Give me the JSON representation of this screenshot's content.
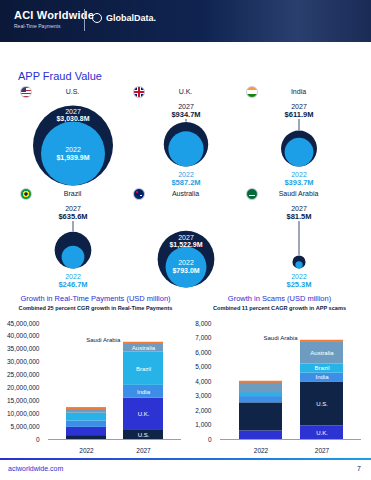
{
  "header": {
    "brand": "ACI Worldwide",
    "brand_tagline": "Real-Time Payments",
    "partner": "GlobalData."
  },
  "section_title": "APP Fraud Value",
  "fraud_values": [
    {
      "country": "U.S.",
      "categories": [
        "2027",
        "2022"
      ],
      "values": [
        3030.8,
        1939.9
      ],
      "value_labels": [
        "$3,030.8M",
        "$1,939.9M"
      ]
    },
    {
      "country": "U.K.",
      "categories": [
        "2027",
        "2022"
      ],
      "values": [
        934.7,
        587.2
      ],
      "value_labels": [
        "$934.7M",
        "$587.2M"
      ]
    },
    {
      "country": "India",
      "categories": [
        "2027",
        "2022"
      ],
      "values": [
        611.9,
        393.7
      ],
      "value_labels": [
        "$611.9M",
        "$393.7M"
      ]
    },
    {
      "country": "Brazil",
      "categories": [
        "2027",
        "2022"
      ],
      "values": [
        635.6,
        246.7
      ],
      "value_labels": [
        "$635.6M",
        "$246.7M"
      ]
    },
    {
      "country": "Australia",
      "categories": [
        "2027",
        "2022"
      ],
      "values": [
        1522.9,
        793.0
      ],
      "value_labels": [
        "$1,522.9M",
        "$793.0M"
      ]
    },
    {
      "country": "Saudi Arabia",
      "categories": [
        "2027",
        "2022"
      ],
      "values": [
        81.5,
        25.3
      ],
      "value_labels": [
        "$81.5M",
        "$25.3M"
      ]
    }
  ],
  "chart_data": [
    {
      "type": "bar",
      "stacked": true,
      "grid": false,
      "title": "Growth in Real-Time Payments (USD million)",
      "subtitle": "Combined 25 percent CGR growth in Real-Time Payments",
      "categories": [
        "2022",
        "2027"
      ],
      "series": [
        {
          "name": "U.S.",
          "color": "#0f2447",
          "values": [
            1200000,
            3500000
          ]
        },
        {
          "name": "U.K.",
          "color": "#2d33d2",
          "values": [
            3500000,
            12500000
          ]
        },
        {
          "name": "India",
          "color": "#3d8ee6",
          "values": [
            2500000,
            5000000
          ]
        },
        {
          "name": "Brazil",
          "color": "#27b2e8",
          "values": [
            3000000,
            13000000
          ]
        },
        {
          "name": "Australia",
          "color": "#6d9cc0",
          "values": [
            1800000,
            3200000
          ]
        },
        {
          "name": "Saudi Arabia",
          "color": "#f27b35",
          "values": [
            150000,
            300000
          ]
        }
      ],
      "ylim": [
        0,
        45000000
      ],
      "yticks": [
        0,
        {
          "value": 5000000,
          "label": "5,000,000"
        },
        {
          "value": 10000000,
          "label": "10,000,000"
        },
        {
          "value": 15000000,
          "label": "15,000,000"
        },
        {
          "value": 20000000,
          "label": "20,000,000"
        },
        {
          "value": 25000000,
          "label": "25,000,000"
        },
        {
          "value": 30000000,
          "label": "30,000,000"
        },
        {
          "value": 35000000,
          "label": "35,000,000"
        },
        {
          "value": 40000000,
          "label": "40,000,000"
        },
        {
          "value": 45000000,
          "label": "45,000,000"
        }
      ]
    },
    {
      "type": "bar",
      "stacked": true,
      "grid": false,
      "title": "Growth in Scams (USD million)",
      "subtitle": "Combined 11 percent CAGR growth in APP scams",
      "categories": [
        "2022",
        "2027"
      ],
      "series": [
        {
          "name": "U.K.",
          "color": "#2d33d2",
          "values": [
            587.2,
            934.7
          ]
        },
        {
          "name": "U.S.",
          "color": "#0f2447",
          "values": [
            1939.9,
            3030.8
          ]
        },
        {
          "name": "India",
          "color": "#3d8ee6",
          "values": [
            393.7,
            611.9
          ]
        },
        {
          "name": "Brazil",
          "color": "#27b2e8",
          "values": [
            246.7,
            635.6
          ]
        },
        {
          "name": "Australia",
          "color": "#6d9cc0",
          "values": [
            793.0,
            1522.9
          ]
        },
        {
          "name": "Saudi Arabia",
          "color": "#f27b35",
          "values": [
            25.3,
            81.5
          ]
        }
      ],
      "ylim": [
        0,
        8000
      ],
      "yticks": [
        0,
        {
          "value": 1000,
          "label": "1,000"
        },
        {
          "value": 2000,
          "label": "2,000"
        },
        {
          "value": 3000,
          "label": "3,000"
        },
        {
          "value": 4000,
          "label": "4,000"
        },
        {
          "value": 5000,
          "label": "5,000"
        },
        {
          "value": 6000,
          "label": "6,000"
        },
        {
          "value": 7000,
          "label": "7,000"
        },
        {
          "value": 8000,
          "label": "8,000"
        }
      ]
    }
  ],
  "footer": {
    "url": "aciworldwide.com",
    "page": "7"
  }
}
